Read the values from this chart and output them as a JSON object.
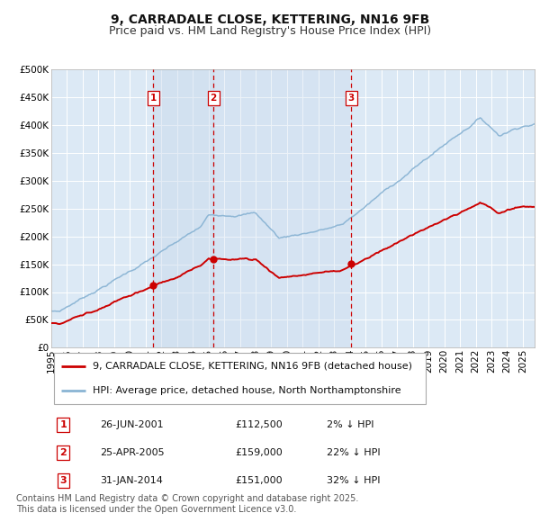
{
  "title": "9, CARRADALE CLOSE, KETTERING, NN16 9FB",
  "subtitle": "Price paid vs. HM Land Registry's House Price Index (HPI)",
  "ylim": [
    0,
    500000
  ],
  "yticks": [
    0,
    50000,
    100000,
    150000,
    200000,
    250000,
    300000,
    350000,
    400000,
    450000,
    500000
  ],
  "ytick_labels": [
    "£0",
    "£50K",
    "£100K",
    "£150K",
    "£200K",
    "£250K",
    "£300K",
    "£350K",
    "£400K",
    "£450K",
    "£500K"
  ],
  "xlim_start": 1995.0,
  "xlim_end": 2025.75,
  "background_color": "#ffffff",
  "plot_bg_color": "#dce9f5",
  "grid_color": "#ffffff",
  "sale_color": "#cc0000",
  "hpi_color": "#8ab4d4",
  "sale_label": "9, CARRADALE CLOSE, KETTERING, NN16 9FB (detached house)",
  "hpi_label": "HPI: Average price, detached house, North Northamptonshire",
  "transactions": [
    {
      "num": 1,
      "date": "26-JUN-2001",
      "price": 112500,
      "pct": "2%",
      "dir": "↓",
      "x_year": 2001.49
    },
    {
      "num": 2,
      "date": "25-APR-2005",
      "price": 159000,
      "pct": "22%",
      "dir": "↓",
      "x_year": 2005.32
    },
    {
      "num": 3,
      "date": "31-JAN-2014",
      "price": 151000,
      "pct": "32%",
      "dir": "↓",
      "x_year": 2014.08
    }
  ],
  "footer_line1": "Contains HM Land Registry data © Crown copyright and database right 2025.",
  "footer_line2": "This data is licensed under the Open Government Licence v3.0.",
  "title_fontsize": 10,
  "subtitle_fontsize": 9,
  "tick_fontsize": 7.5,
  "legend_fontsize": 8,
  "table_fontsize": 8,
  "footer_fontsize": 7
}
